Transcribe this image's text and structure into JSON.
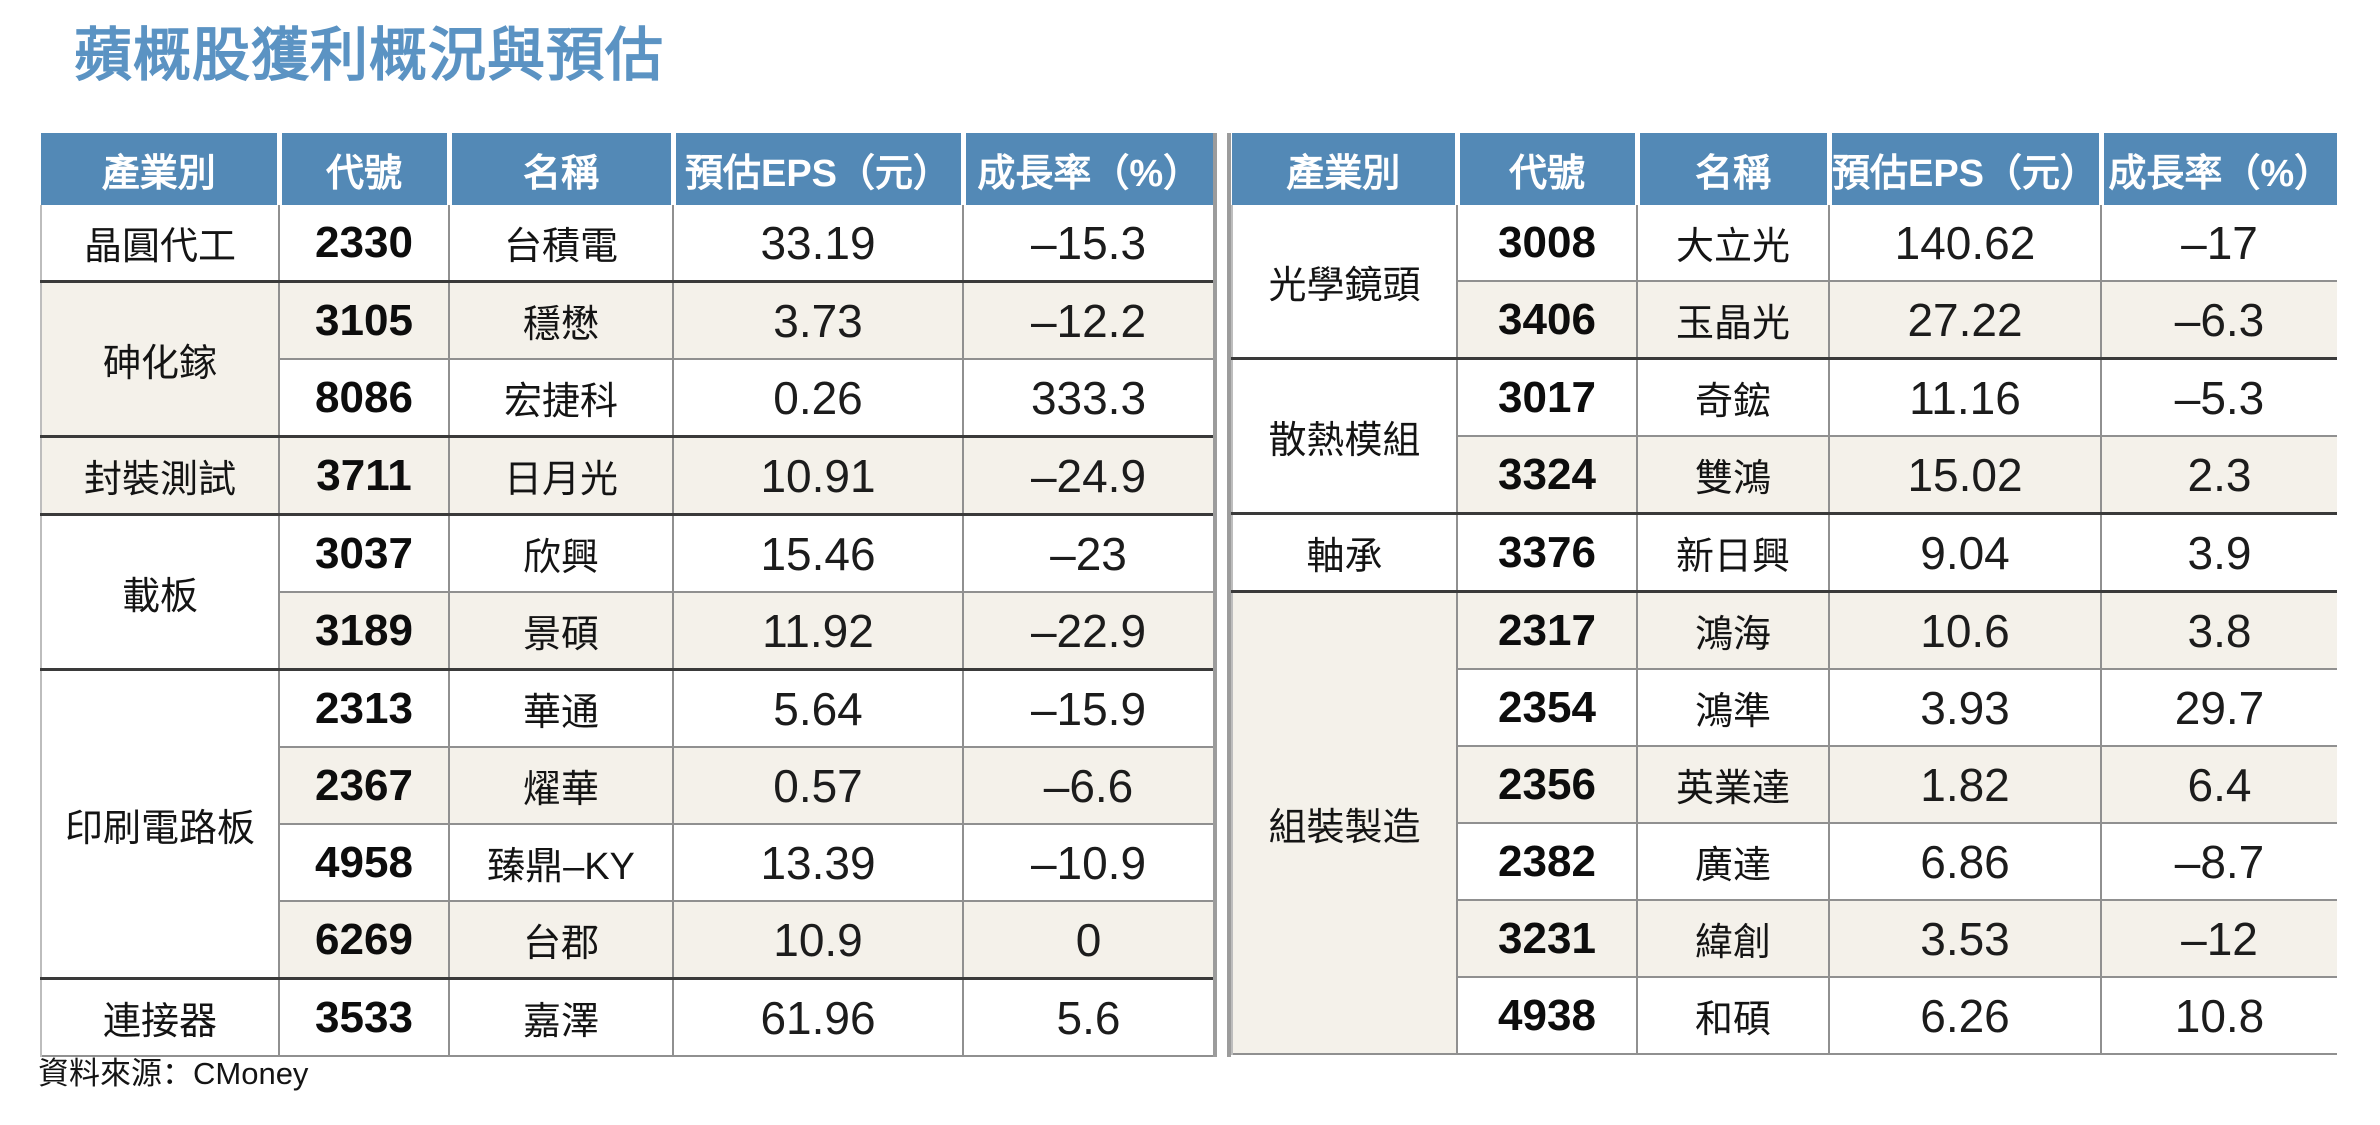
{
  "title": "蘋概股獲利概況與預估",
  "source": "資料來源：CMoney",
  "colors": {
    "title": "#5B93C3",
    "header_bg": "#5389B6",
    "header_text": "#FFFFFF",
    "row_alt": "#F4F1EA",
    "industry_light": "#F0EDE3",
    "industry_dark": "#E8E1D1",
    "line_gray": "#909090",
    "line_dark": "#3A3A3A",
    "divider_gray": "#9C9C9C"
  },
  "chart_data": [
    {
      "type": "table",
      "position": "left",
      "columns": [
        "產業別",
        "代號",
        "名稱",
        "預估EPS（元）",
        "成長率（%）"
      ],
      "groups": [
        {
          "industry": "晶圓代工",
          "rows": [
            {
              "code": "2330",
              "name": "台積電",
              "eps": "33.19",
              "growth": "–15.3"
            }
          ]
        },
        {
          "industry": "砷化鎵",
          "rows": [
            {
              "code": "3105",
              "name": "穩懋",
              "eps": "3.73",
              "growth": "–12.2"
            },
            {
              "code": "8086",
              "name": "宏捷科",
              "eps": "0.26",
              "growth": "333.3"
            }
          ]
        },
        {
          "industry": "封裝測試",
          "rows": [
            {
              "code": "3711",
              "name": "日月光",
              "eps": "10.91",
              "growth": "–24.9"
            }
          ]
        },
        {
          "industry": "載板",
          "rows": [
            {
              "code": "3037",
              "name": "欣興",
              "eps": "15.46",
              "growth": "–23"
            },
            {
              "code": "3189",
              "name": "景碩",
              "eps": "11.92",
              "growth": "–22.9"
            }
          ]
        },
        {
          "industry": "印刷電路板",
          "rows": [
            {
              "code": "2313",
              "name": "華通",
              "eps": "5.64",
              "growth": "–15.9"
            },
            {
              "code": "2367",
              "name": "燿華",
              "eps": "0.57",
              "growth": "–6.6"
            },
            {
              "code": "4958",
              "name": "臻鼎–KY",
              "eps": "13.39",
              "growth": "–10.9"
            },
            {
              "code": "6269",
              "name": "台郡",
              "eps": "10.9",
              "growth": "0"
            }
          ]
        },
        {
          "industry": "連接器",
          "rows": [
            {
              "code": "3533",
              "name": "嘉澤",
              "eps": "61.96",
              "growth": "5.6"
            }
          ]
        }
      ]
    },
    {
      "type": "table",
      "position": "right",
      "columns": [
        "產業別",
        "代號",
        "名稱",
        "預估EPS（元）",
        "成長率（%）"
      ],
      "groups": [
        {
          "industry": "光學鏡頭",
          "rows": [
            {
              "code": "3008",
              "name": "大立光",
              "eps": "140.62",
              "growth": "–17"
            },
            {
              "code": "3406",
              "name": "玉晶光",
              "eps": "27.22",
              "growth": "–6.3"
            }
          ]
        },
        {
          "industry": "散熱模組",
          "rows": [
            {
              "code": "3017",
              "name": "奇鋐",
              "eps": "11.16",
              "growth": "–5.3"
            },
            {
              "code": "3324",
              "name": "雙鴻",
              "eps": "15.02",
              "growth": "2.3"
            }
          ]
        },
        {
          "industry": "軸承",
          "rows": [
            {
              "code": "3376",
              "name": "新日興",
              "eps": "9.04",
              "growth": "3.9"
            }
          ]
        },
        {
          "industry": "組裝製造",
          "rows": [
            {
              "code": "2317",
              "name": "鴻海",
              "eps": "10.6",
              "growth": "3.8"
            },
            {
              "code": "2354",
              "name": "鴻準",
              "eps": "3.93",
              "growth": "29.7"
            },
            {
              "code": "2356",
              "name": "英業達",
              "eps": "1.82",
              "growth": "6.4"
            },
            {
              "code": "2382",
              "name": "廣達",
              "eps": "6.86",
              "growth": "–8.7"
            },
            {
              "code": "3231",
              "name": "緯創",
              "eps": "3.53",
              "growth": "–12"
            },
            {
              "code": "4938",
              "name": "和碩",
              "eps": "6.26",
              "growth": "10.8"
            }
          ]
        }
      ]
    }
  ]
}
